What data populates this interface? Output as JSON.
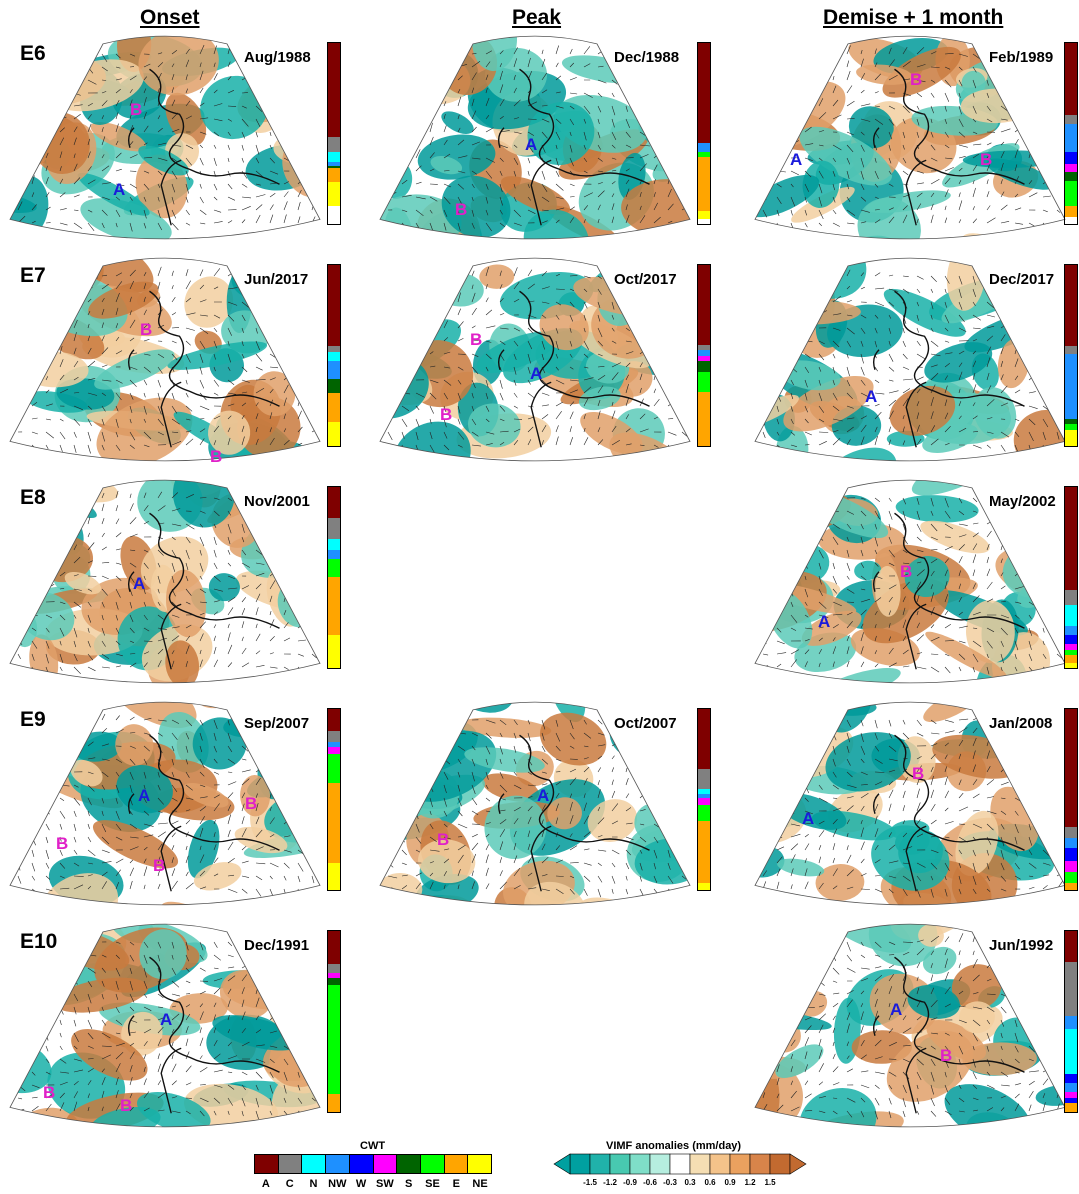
{
  "columns": [
    "Onset",
    "Peak",
    "Demise + 1 month"
  ],
  "rows": [
    {
      "label": "E6",
      "panels": [
        {
          "date": "Aug/1988",
          "markers": [
            {
              "type": "B"
            },
            {
              "type": "A"
            }
          ],
          "bar": [
            [
              "A",
              0.52
            ],
            [
              "C",
              0.08
            ],
            [
              "N",
              0.06
            ],
            [
              "NW",
              0.02
            ],
            [
              "S",
              0.01
            ],
            [
              "E",
              0.08
            ],
            [
              "NE",
              0.13
            ]
          ]
        },
        {
          "date": "Dec/1988",
          "markers": [
            {
              "type": "A"
            },
            {
              "type": "B"
            }
          ],
          "bar": [
            [
              "A",
              0.55
            ],
            [
              "NW",
              0.05
            ],
            [
              "SE",
              0.03
            ],
            [
              "E",
              0.3
            ],
            [
              "NE",
              0.04
            ]
          ]
        },
        {
          "date": "Feb/1989",
          "markers": [
            {
              "type": "B"
            },
            {
              "type": "A"
            },
            {
              "type": "B"
            }
          ],
          "bar": [
            [
              "A",
              0.4
            ],
            [
              "C",
              0.05
            ],
            [
              "NW",
              0.15
            ],
            [
              "W",
              0.07
            ],
            [
              "SW",
              0.04
            ],
            [
              "S",
              0.05
            ],
            [
              "SE",
              0.14
            ],
            [
              "E",
              0.06
            ]
          ]
        }
      ]
    },
    {
      "label": "E7",
      "panels": [
        {
          "date": "Jun/2017",
          "markers": [
            {
              "type": "B"
            },
            {
              "type": "B"
            }
          ],
          "bar": [
            [
              "A",
              0.45
            ],
            [
              "C",
              0.03
            ],
            [
              "N",
              0.05
            ],
            [
              "NW",
              0.1
            ],
            [
              "S",
              0.08
            ],
            [
              "E",
              0.16
            ],
            [
              "NE",
              0.13
            ]
          ]
        },
        {
          "date": "Oct/2017",
          "markers": [
            {
              "type": "B"
            },
            {
              "type": "A"
            },
            {
              "type": "B"
            }
          ],
          "bar": [
            [
              "A",
              0.44
            ],
            [
              "C",
              0.03
            ],
            [
              "NW",
              0.03
            ],
            [
              "SW",
              0.03
            ],
            [
              "S",
              0.06
            ],
            [
              "SE",
              0.11
            ],
            [
              "E",
              0.3
            ]
          ]
        },
        {
          "date": "Dec/2017",
          "markers": [
            {
              "type": "A"
            }
          ],
          "bar": [
            [
              "A",
              0.45
            ],
            [
              "C",
              0.04
            ],
            [
              "NW",
              0.36
            ],
            [
              "S",
              0.03
            ],
            [
              "SE",
              0.03
            ],
            [
              "NE",
              0.09
            ]
          ]
        }
      ]
    },
    {
      "label": "E8",
      "panels": [
        {
          "date": "Nov/2001",
          "markers": [
            {
              "type": "A"
            }
          ],
          "bar": [
            [
              "A",
              0.17
            ],
            [
              "C",
              0.12
            ],
            [
              "N",
              0.06
            ],
            [
              "NW",
              0.05
            ],
            [
              "SE",
              0.1
            ],
            [
              "E",
              0.32
            ],
            [
              "NE",
              0.18
            ]
          ]
        },
        null,
        {
          "date": "May/2002",
          "markers": [
            {
              "type": "B"
            },
            {
              "type": "A"
            }
          ],
          "bar": [
            [
              "A",
              0.57
            ],
            [
              "C",
              0.08
            ],
            [
              "N",
              0.12
            ],
            [
              "NW",
              0.05
            ],
            [
              "W",
              0.05
            ],
            [
              "SW",
              0.03
            ],
            [
              "SE",
              0.03
            ],
            [
              "E",
              0.04
            ],
            [
              "NE",
              0.03
            ]
          ]
        }
      ]
    },
    {
      "label": "E9",
      "panels": [
        {
          "date": "Sep/2007",
          "markers": [
            {
              "type": "A"
            },
            {
              "type": "B"
            },
            {
              "type": "B"
            },
            {
              "type": "B"
            }
          ],
          "bar": [
            [
              "A",
              0.12
            ],
            [
              "C",
              0.06
            ],
            [
              "NW",
              0.03
            ],
            [
              "SW",
              0.04
            ],
            [
              "SE",
              0.16
            ],
            [
              "E",
              0.44
            ],
            [
              "NE",
              0.15
            ]
          ]
        },
        {
          "date": "Oct/2007",
          "markers": [
            {
              "type": "A"
            },
            {
              "type": "B"
            }
          ],
          "bar": [
            [
              "A",
              0.33
            ],
            [
              "C",
              0.11
            ],
            [
              "N",
              0.03
            ],
            [
              "NW",
              0.02
            ],
            [
              "SW",
              0.04
            ],
            [
              "SE",
              0.09
            ],
            [
              "E",
              0.34
            ],
            [
              "NE",
              0.04
            ]
          ]
        },
        {
          "date": "Jan/2008",
          "markers": [
            {
              "type": "B"
            },
            {
              "type": "A"
            }
          ],
          "bar": [
            [
              "A",
              0.65
            ],
            [
              "C",
              0.06
            ],
            [
              "NW",
              0.06
            ],
            [
              "W",
              0.07
            ],
            [
              "SW",
              0.06
            ],
            [
              "SE",
              0.06
            ],
            [
              "E",
              0.04
            ]
          ]
        }
      ]
    },
    {
      "label": "E10",
      "panels": [
        {
          "date": "Dec/1991",
          "markers": [
            {
              "type": "A"
            },
            {
              "type": "B"
            },
            {
              "type": "B"
            }
          ],
          "bar": [
            [
              "A",
              0.18
            ],
            [
              "C",
              0.05
            ],
            [
              "SW",
              0.03
            ],
            [
              "S",
              0.04
            ],
            [
              "SE",
              0.6
            ],
            [
              "E",
              0.1
            ]
          ]
        },
        null,
        {
          "date": "Jun/1992",
          "markers": [
            {
              "type": "A"
            },
            {
              "type": "B"
            }
          ],
          "bar": [
            [
              "A",
              0.17
            ],
            [
              "C",
              0.3
            ],
            [
              "NW",
              0.07
            ],
            [
              "N",
              0.25
            ],
            [
              "W",
              0.05
            ],
            [
              "NW",
              0.05
            ],
            [
              "SW",
              0.03
            ],
            [
              "W",
              0.03
            ],
            [
              "E",
              0.05
            ]
          ]
        }
      ]
    }
  ],
  "cwt_legend": {
    "title": "CWT",
    "classes": [
      "A",
      "C",
      "N",
      "NW",
      "W",
      "SW",
      "S",
      "SE",
      "E",
      "NE"
    ],
    "colors": [
      "#7f0000",
      "#808080",
      "#00ffff",
      "#1e90ff",
      "#0000ff",
      "#ff00ff",
      "#006400",
      "#00ff00",
      "#ffa500",
      "#ffff00"
    ]
  },
  "vimf_legend": {
    "title": "VIMF anomalies (mm/day)",
    "ticks": [
      "-1.5",
      "-1.2",
      "-0.9",
      "-0.6",
      "-0.3",
      "0.3",
      "0.6",
      "0.9",
      "1.2",
      "1.5"
    ],
    "colors": [
      "#00a0a0",
      "#20b2aa",
      "#48c9b0",
      "#7fdec8",
      "#b6eedf",
      "#ffffff",
      "#f5deb3",
      "#f4c38a",
      "#eaa15f",
      "#d8844a",
      "#c26a30"
    ]
  }
}
